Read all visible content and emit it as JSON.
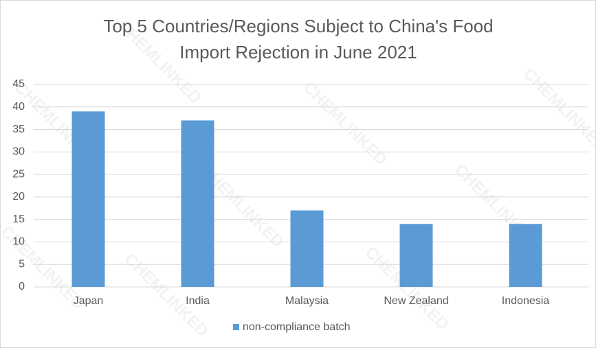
{
  "chart_data": {
    "type": "bar",
    "title": "Top 5 Countries/Regions Subject to China's Food Import Rejection in June 2021",
    "categories": [
      "Japan",
      "India",
      "Malaysia",
      "New Zealand",
      "Indonesia"
    ],
    "series": [
      {
        "name": "non-compliance batch",
        "color": "#5b9bd5",
        "values": [
          39,
          37,
          17,
          14,
          14
        ]
      }
    ],
    "ylim": [
      0,
      45
    ],
    "yticks": [
      0,
      5,
      10,
      15,
      20,
      25,
      30,
      35,
      40,
      45
    ],
    "grid": true,
    "legend": "bottom",
    "watermark": "CHEMLINKED"
  }
}
